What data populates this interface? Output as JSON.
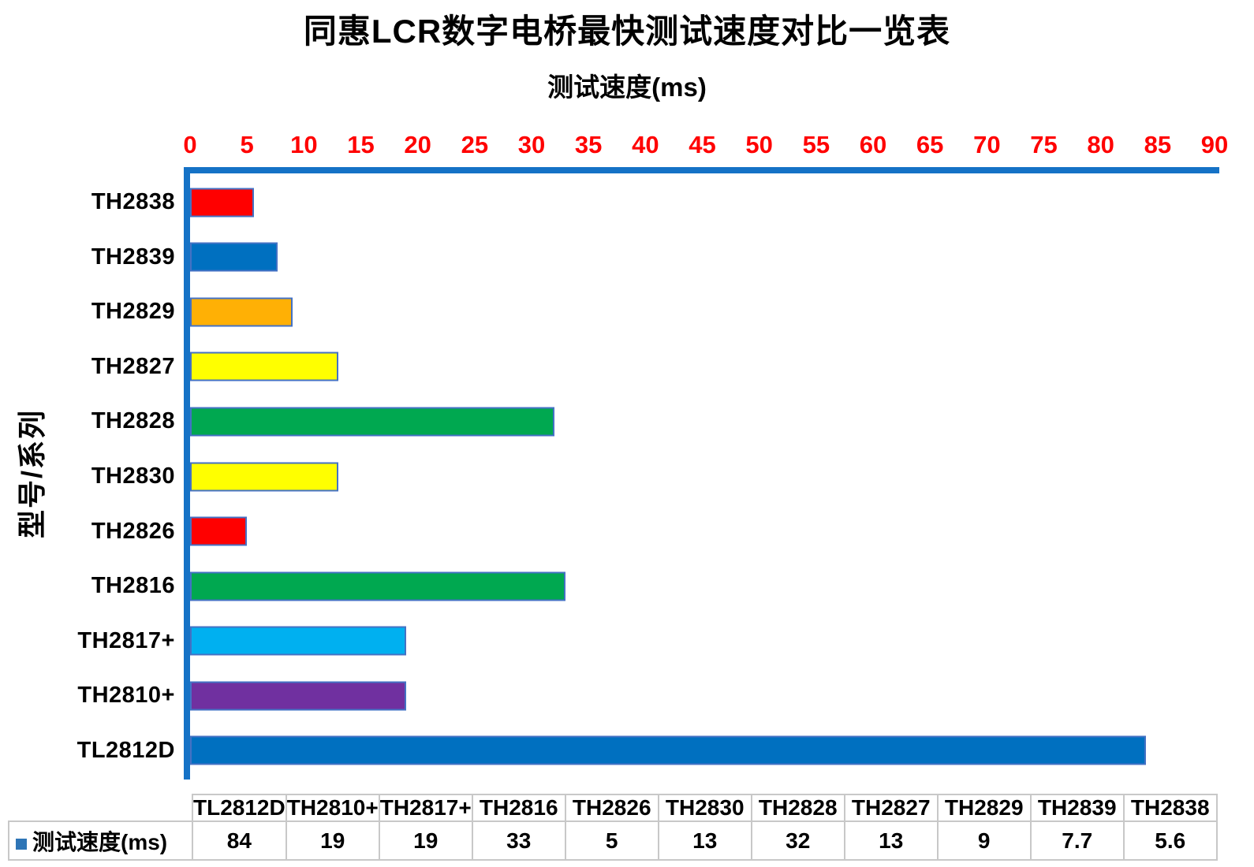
{
  "title": "同惠LCR数字电桥最快测试速度对比一览表",
  "chart_data": {
    "type": "bar",
    "orientation": "horizontal",
    "title": "同惠LCR数字电桥最快测试速度对比一览表",
    "xlabel": "测试速度(ms)",
    "ylabel": "型号/系列",
    "series_name": "测试速度(ms)",
    "xlim": [
      0,
      90
    ],
    "xticks": [
      0,
      5,
      10,
      15,
      20,
      25,
      30,
      35,
      40,
      45,
      50,
      55,
      60,
      65,
      70,
      75,
      80,
      85,
      90
    ],
    "grid": false,
    "legend_position": "bottom-table",
    "bars_top_to_bottom": [
      {
        "label": "TH2838",
        "value": 5.6,
        "color": "#FF0000"
      },
      {
        "label": "TH2839",
        "value": 7.7,
        "color": "#0070C0"
      },
      {
        "label": "TH2829",
        "value": 9,
        "color": "#FFB005"
      },
      {
        "label": "TH2827",
        "value": 13,
        "color": "#FFFF00"
      },
      {
        "label": "TH2828",
        "value": 32,
        "color": "#00A850"
      },
      {
        "label": "TH2830",
        "value": 13,
        "color": "#FFFF00"
      },
      {
        "label": "TH2826",
        "value": 5,
        "color": "#FF0000"
      },
      {
        "label": "TH2816",
        "value": 33,
        "color": "#00A850"
      },
      {
        "label": "TH2817+",
        "value": 19,
        "color": "#00B0F0"
      },
      {
        "label": "TH2810+",
        "value": 19,
        "color": "#7030A0"
      },
      {
        "label": "TL2812D",
        "value": 84,
        "color": "#0070C0"
      }
    ],
    "colors": {
      "tick_label": "#FF0000",
      "axis_line": "#1572C6",
      "bar_border": "#4472C4",
      "legend_marker": "#2E75B6",
      "text": "#000000"
    }
  },
  "table": {
    "row_label": "测试速度(ms)",
    "columns": [
      "TL2812D",
      "TH2810+",
      "TH2817+",
      "TH2816",
      "TH2826",
      "TH2830",
      "TH2828",
      "TH2827",
      "TH2829",
      "TH2839",
      "TH2838"
    ],
    "values": [
      "84",
      "19",
      "19",
      "33",
      "5",
      "13",
      "32",
      "13",
      "9",
      "7.7",
      "5.6"
    ]
  }
}
